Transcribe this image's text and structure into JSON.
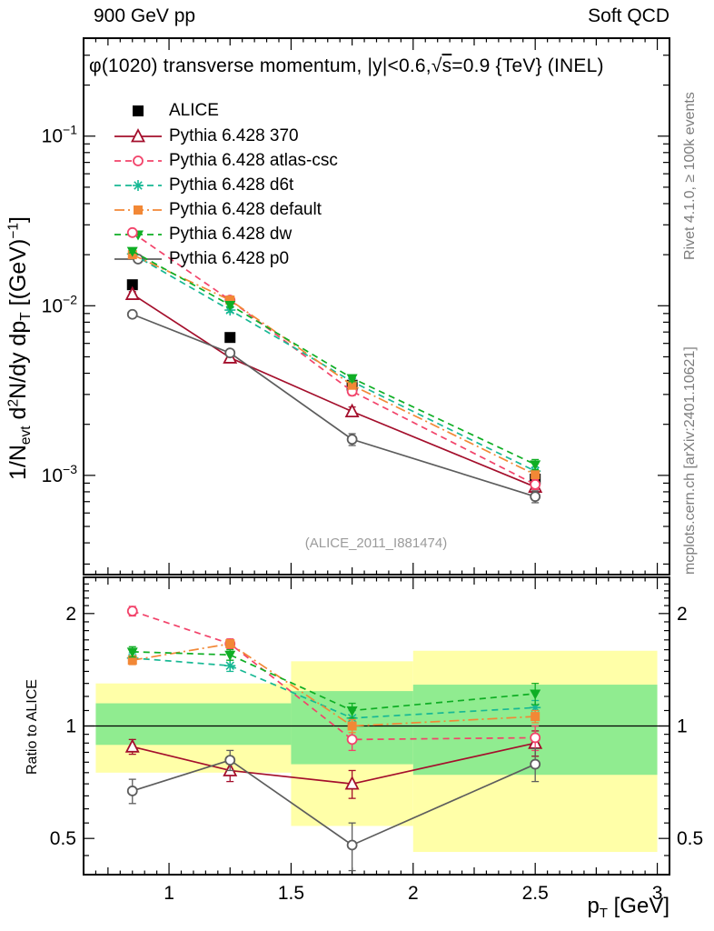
{
  "header": {
    "left": "900 GeV pp",
    "right": "Soft QCD"
  },
  "panel_title_parts": [
    {
      "t": "φ(1020) transverse momentum, |y|<0.6,"
    },
    {
      "t": "√"
    },
    {
      "t": "s",
      "ol": true
    },
    {
      "t": "=0.9 {TeV} (INEL)"
    }
  ],
  "watermark": "(ALICE_2011_I881474)",
  "side_texts": {
    "top_right": "Rivet 4.1.0, ≥ 100k events",
    "bottom_right": "mcplots.cern.ch [arXiv:2401.10621]"
  },
  "axes": {
    "y_title_parts": [
      {
        "t": "1/N"
      },
      {
        "t": "evt",
        "sub": true
      },
      {
        "t": "  d"
      },
      {
        "t": "2",
        "sup": true
      },
      {
        "t": "N/dy dp"
      },
      {
        "t": "T",
        "sub": true
      },
      {
        "t": " [(GeV)"
      },
      {
        "t": "−1",
        "sup": true
      },
      {
        "t": "]"
      }
    ],
    "ratio_y_title": "Ratio to ALICE",
    "x_title_parts": [
      {
        "t": "p"
      },
      {
        "t": "T",
        "sub": true
      },
      {
        "t": " [GeV]"
      }
    ],
    "x_tick_labels": [
      "1",
      "1.5",
      "2",
      "2.5",
      "3"
    ],
    "x_tick_values": [
      1,
      1.5,
      2,
      2.5,
      3
    ],
    "main_y_ticks": [
      {
        "base": "10",
        "exp": "−1",
        "value": 0.1
      },
      {
        "base": "10",
        "exp": "−2",
        "value": 0.01
      },
      {
        "base": "10",
        "exp": "−3",
        "value": 0.001
      }
    ],
    "ratio_y_ticks": [
      {
        "label": "2",
        "value": 2
      },
      {
        "label": "1",
        "value": 1
      },
      {
        "label": "0.5",
        "value": 0.5
      }
    ]
  },
  "chart_data": {
    "type": "line",
    "title": "φ(1020) transverse momentum, |y|<0.6, √s=0.9 {TeV} (INEL)",
    "xlabel": "pT [GeV]",
    "ylabel": "1/Nevt d2N/dy dpT [(GeV)-1]",
    "ratio_ylabel": "Ratio to ALICE",
    "x": [
      0.85,
      1.25,
      1.75,
      2.5
    ],
    "x_range": [
      0.65,
      3.05
    ],
    "main_y_range": [
      0.00026,
      0.378
    ],
    "main_y_log": true,
    "ratio_y_range": [
      0.4,
      2.5
    ],
    "ratio_y_log": true,
    "band_colors": {
      "yellow": "#ffffa8",
      "green": "#90ec90"
    },
    "bands": [
      {
        "x0": 0.7,
        "x1": 1.5,
        "yellow": [
          0.75,
          1.3
        ],
        "green": [
          0.89,
          1.15
        ]
      },
      {
        "x0": 1.5,
        "x1": 2.0,
        "yellow": [
          0.54,
          1.49
        ],
        "green": [
          0.79,
          1.24
        ]
      },
      {
        "x0": 2.0,
        "x1": 3.0,
        "yellow": [
          0.46,
          1.59
        ],
        "green": [
          0.74,
          1.29
        ]
      }
    ],
    "series": [
      {
        "id": "alice",
        "label": "ALICE",
        "color": "#000000",
        "marker": "square-filled",
        "msize": 12,
        "line": "none",
        "values": [
          0.0133,
          0.0065,
          0.0034,
          0.00095
        ],
        "err": [
          0,
          0,
          0,
          0
        ],
        "ratio": null
      },
      {
        "id": "p370",
        "label": "Pythia 6.428 370",
        "color": "#a40f2c",
        "marker": "triangle-open",
        "msize": 13,
        "line": "solid",
        "values": [
          0.0117,
          0.00494,
          0.00238,
          0.000855
        ],
        "err": [
          0.0004,
          0.0003,
          0.00015,
          6e-05
        ],
        "ratio": [
          0.88,
          0.76,
          0.7,
          0.9
        ],
        "ratio_err": [
          0.04,
          0.05,
          0.06,
          0.07
        ]
      },
      {
        "id": "atlascsc",
        "label": "Pythia 6.428 atlas-csc",
        "color": "#f2436a",
        "marker": "circle-open",
        "msize": 10,
        "line": "dash",
        "values": [
          0.027,
          0.0108,
          0.00313,
          0.000884
        ],
        "err": [
          0.0006,
          0.0003,
          0.00017,
          6e-05
        ],
        "ratio": [
          2.03,
          1.66,
          0.92,
          0.93
        ],
        "ratio_err": [
          0.06,
          0.05,
          0.06,
          0.07
        ]
      },
      {
        "id": "d6t",
        "label": "Pythia 6.428 d6t",
        "color": "#17b894",
        "marker": "star",
        "msize": 12,
        "line": "dash",
        "values": [
          0.0202,
          0.00943,
          0.00357,
          0.00106
        ],
        "err": [
          0.0005,
          0.0003,
          0.00017,
          6e-05
        ],
        "ratio": [
          1.52,
          1.45,
          1.05,
          1.12
        ],
        "ratio_err": [
          0.05,
          0.05,
          0.05,
          0.05
        ]
      },
      {
        "id": "default",
        "label": "Pythia 6.428 default",
        "color": "#f28836",
        "marker": "square-filled",
        "msize": 10,
        "line": "dashdot",
        "values": [
          0.02,
          0.0108,
          0.0034,
          0.00101
        ],
        "err": [
          0.0005,
          0.0003,
          0.00016,
          5e-05
        ],
        "ratio": [
          1.5,
          1.66,
          1.0,
          1.06
        ],
        "ratio_err": [
          0.04,
          0.04,
          0.04,
          0.04
        ]
      },
      {
        "id": "dw",
        "label": "Pythia 6.428 dw",
        "color": "#0fae24",
        "marker": "triangle-down-filled",
        "msize": 12,
        "line": "dash",
        "values": [
          0.021,
          0.0101,
          0.00374,
          0.00116
        ],
        "err": [
          0.0005,
          0.0003,
          0.00017,
          8e-05
        ],
        "ratio": [
          1.58,
          1.55,
          1.1,
          1.22
        ],
        "ratio_err": [
          0.05,
          0.05,
          0.05,
          0.08
        ]
      },
      {
        "id": "p0",
        "label": "Pythia 6.428 p0",
        "color": "#5d5d5d",
        "marker": "circle-open",
        "msize": 10,
        "line": "solid",
        "values": [
          0.0089,
          0.00527,
          0.00163,
          0.00075
        ],
        "err": [
          0.0003,
          0.0002,
          0.00013,
          6e-05
        ],
        "ratio": [
          0.67,
          0.81,
          0.48,
          0.79
        ],
        "ratio_err": [
          0.05,
          0.05,
          0.07,
          0.08
        ]
      }
    ],
    "legend_position": "top-left-inside",
    "grid": false
  }
}
